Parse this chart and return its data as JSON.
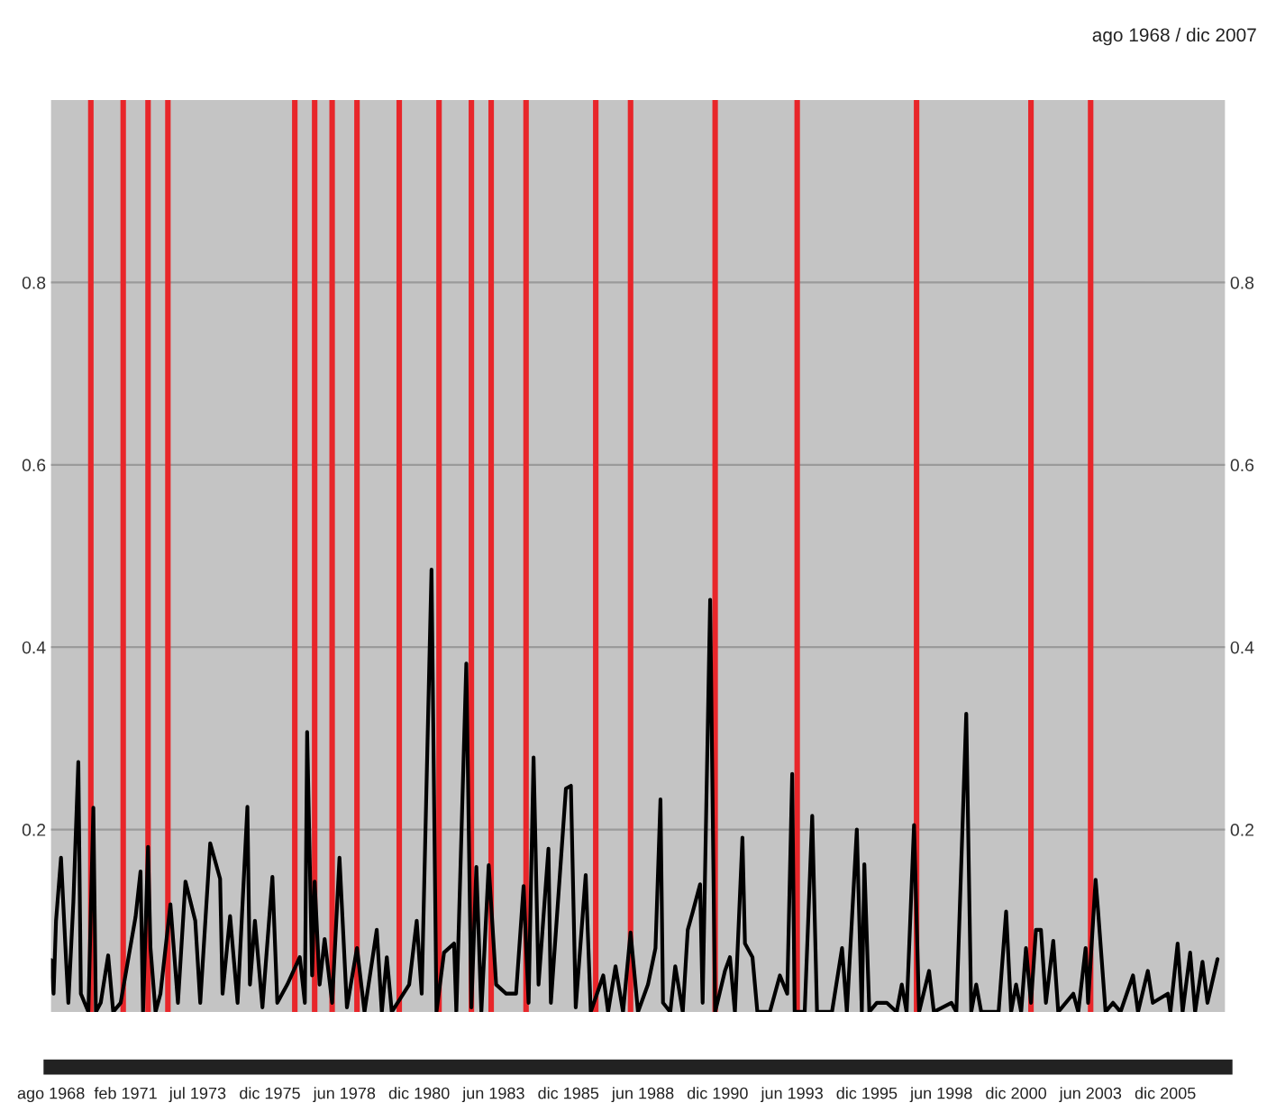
{
  "chart_data": {
    "type": "line",
    "title": "ago 1968 / dic 2007",
    "x": [
      "1968-08",
      "1968-09",
      "1968-10",
      "1968-12",
      "1969-02",
      "1969-03",
      "1969-05",
      "1969-07",
      "1969-08",
      "1969-11",
      "1970-01",
      "1970-02",
      "1970-04",
      "1970-07",
      "1970-09",
      "1970-12",
      "1971-06",
      "1971-08",
      "1971-09",
      "1971-11",
      "1971-12",
      "1972-02",
      "1972-04",
      "1972-08",
      "1972-11",
      "1973-02",
      "1973-06",
      "1973-08",
      "1973-12",
      "1974-04",
      "1974-05",
      "1974-08",
      "1974-11",
      "1975-03",
      "1975-04",
      "1975-06",
      "1975-09",
      "1976-01",
      "1976-03",
      "1976-07",
      "1976-12",
      "1977-02",
      "1977-03",
      "1977-05",
      "1977-06",
      "1977-08",
      "1977-10",
      "1978-01",
      "1978-04",
      "1978-07",
      "1978-11",
      "1979-02",
      "1979-07",
      "1979-09",
      "1979-11",
      "1980-01",
      "1980-08",
      "1980-11",
      "1981-01",
      "1981-05",
      "1981-07",
      "1981-10",
      "1982-02",
      "1982-03",
      "1982-07",
      "1982-09",
      "1982-11",
      "1983-01",
      "1983-04",
      "1983-07",
      "1983-11",
      "1984-03",
      "1984-06",
      "1984-08",
      "1984-10",
      "1984-12",
      "1985-04",
      "1985-05",
      "1985-11",
      "1986-01",
      "1986-03",
      "1986-07",
      "1986-09",
      "1987-02",
      "1987-04",
      "1987-07",
      "1987-10",
      "1988-01",
      "1988-04",
      "1988-08",
      "1988-11",
      "1989-01",
      "1989-02",
      "1989-05",
      "1989-07",
      "1989-10",
      "1989-12",
      "1990-02",
      "1990-05",
      "1990-06",
      "1990-09",
      "1990-11",
      "1991-03",
      "1991-05",
      "1991-07",
      "1991-10",
      "1991-11",
      "1992-02",
      "1992-04",
      "1992-09",
      "1993-01",
      "1993-04",
      "1993-06",
      "1993-07",
      "1993-11",
      "1994-02",
      "1994-04",
      "1994-10",
      "1995-02",
      "1995-04",
      "1995-08",
      "1995-10",
      "1995-11",
      "1996-01",
      "1996-04",
      "1996-08",
      "1996-12",
      "1997-02",
      "1997-04",
      "1997-07",
      "1997-09",
      "1998-01",
      "1998-03",
      "1998-10",
      "1998-12",
      "1999-04",
      "1999-06",
      "1999-08",
      "1999-10",
      "2000-05",
      "2000-08",
      "2000-10",
      "2000-12",
      "2001-02",
      "2001-04",
      "2001-06",
      "2001-08",
      "2001-10",
      "2001-12",
      "2002-03",
      "2002-05",
      "2002-11",
      "2003-01",
      "2003-04",
      "2003-05",
      "2003-08",
      "2003-09",
      "2003-12",
      "2004-03",
      "2004-06",
      "2004-11",
      "2005-01",
      "2005-05",
      "2005-07",
      "2006-01",
      "2006-02",
      "2006-05",
      "2006-07",
      "2006-10",
      "2006-12",
      "2007-03",
      "2007-05",
      "2007-09"
    ],
    "series": [
      {
        "color": "#000000",
        "values": [
          0.057,
          0.02,
          0.1,
          0.169,
          0.057,
          0.01,
          0.12,
          0.274,
          0.02,
          0,
          0.224,
          0,
          0.01,
          0.062,
          0,
          0.01,
          0.104,
          0.154,
          0,
          0.181,
          0.07,
          0,
          0.02,
          0.118,
          0.01,
          0.143,
          0.1,
          0.01,
          0.185,
          0.146,
          0.02,
          0.105,
          0.01,
          0.225,
          0.03,
          0.1,
          0.005,
          0.148,
          0.01,
          0.03,
          0.06,
          0.01,
          0.307,
          0.04,
          0.143,
          0.03,
          0.08,
          0.01,
          0.169,
          0.005,
          0.07,
          0,
          0.09,
          0,
          0.06,
          0,
          0.03,
          0.1,
          0.02,
          0.485,
          0,
          0.065,
          0.075,
          0,
          0.382,
          0.005,
          0.159,
          0,
          0.161,
          0.03,
          0.02,
          0.02,
          0.138,
          0.01,
          0.279,
          0.03,
          0.179,
          0.01,
          0.245,
          0.248,
          0.005,
          0.15,
          0,
          0.04,
          0,
          0.05,
          0,
          0.087,
          0,
          0.03,
          0.07,
          0.233,
          0.01,
          0,
          0.05,
          0,
          0.09,
          0.11,
          0.14,
          0.01,
          0.452,
          0,
          0.045,
          0.06,
          0,
          0.191,
          0.075,
          0.06,
          0,
          0,
          0.04,
          0.02,
          0.261,
          0,
          0,
          0.215,
          0,
          0,
          0.07,
          0,
          0.2,
          0,
          0.162,
          0,
          0.01,
          0.01,
          0,
          0.03,
          0,
          0.205,
          0,
          0.045,
          0,
          0.01,
          0,
          0.327,
          0,
          0.03,
          0,
          0,
          0.11,
          0,
          0.03,
          0,
          0.07,
          0.01,
          0.09,
          0.09,
          0.01,
          0.078,
          0,
          0.02,
          0,
          0.07,
          0.01,
          0.145,
          0.11,
          0,
          0.01,
          0,
          0.04,
          0,
          0.045,
          0.01,
          0.02,
          0,
          0.075,
          0,
          0.065,
          0,
          0.055,
          0.01,
          0.058
        ]
      }
    ],
    "ref_lines": [
      {
        "axis": "x",
        "value": "1969-12",
        "color": "#e8262a"
      },
      {
        "axis": "x",
        "value": "1971-01",
        "color": "#e8262a"
      },
      {
        "axis": "x",
        "value": "1971-11",
        "color": "#e8262a"
      },
      {
        "axis": "x",
        "value": "1972-07",
        "color": "#e8262a"
      },
      {
        "axis": "x",
        "value": "1976-10",
        "color": "#e8262a"
      },
      {
        "axis": "x",
        "value": "1977-06",
        "color": "#e8262a"
      },
      {
        "axis": "x",
        "value": "1978-01",
        "color": "#e8262a"
      },
      {
        "axis": "x",
        "value": "1978-11",
        "color": "#e8262a"
      },
      {
        "axis": "x",
        "value": "1980-04",
        "color": "#e8262a"
      },
      {
        "axis": "x",
        "value": "1981-08",
        "color": "#e8262a"
      },
      {
        "axis": "x",
        "value": "1982-09",
        "color": "#e8262a"
      },
      {
        "axis": "x",
        "value": "1983-05",
        "color": "#e8262a"
      },
      {
        "axis": "x",
        "value": "1984-07",
        "color": "#e8262a"
      },
      {
        "axis": "x",
        "value": "1986-11",
        "color": "#e8262a"
      },
      {
        "axis": "x",
        "value": "1988-01",
        "color": "#e8262a"
      },
      {
        "axis": "x",
        "value": "1990-11",
        "color": "#e8262a"
      },
      {
        "axis": "x",
        "value": "1993-08",
        "color": "#e8262a"
      },
      {
        "axis": "x",
        "value": "1997-08",
        "color": "#e8262a"
      },
      {
        "axis": "x",
        "value": "2001-06",
        "color": "#e8262a"
      },
      {
        "axis": "x",
        "value": "2003-06",
        "color": "#e8262a"
      }
    ],
    "xlim": [
      "1968-08",
      "2007-12"
    ],
    "xticks": [
      {
        "value": "1968-08",
        "label": "ago 1968"
      },
      {
        "value": "1971-02",
        "label": "feb 1971"
      },
      {
        "value": "1973-07",
        "label": "jul 1973"
      },
      {
        "value": "1975-12",
        "label": "dic 1975"
      },
      {
        "value": "1978-06",
        "label": "jun 1978"
      },
      {
        "value": "1980-12",
        "label": "dic 1980"
      },
      {
        "value": "1983-06",
        "label": "jun 1983"
      },
      {
        "value": "1985-12",
        "label": "dic 1985"
      },
      {
        "value": "1988-06",
        "label": "jun 1988"
      },
      {
        "value": "1990-12",
        "label": "dic 1990"
      },
      {
        "value": "1993-06",
        "label": "jun 1993"
      },
      {
        "value": "1995-12",
        "label": "dic 1995"
      },
      {
        "value": "1998-06",
        "label": "jun 1998"
      },
      {
        "value": "2000-12",
        "label": "dic 2000"
      },
      {
        "value": "2003-06",
        "label": "jun 2003"
      },
      {
        "value": "2005-12",
        "label": "dic 2005"
      }
    ],
    "ylim": [
      0,
      1
    ],
    "yticks": [
      0.2,
      0.4,
      0.6,
      0.8
    ],
    "y2lim": [
      0,
      1
    ],
    "y2ticks": [
      0.2,
      0.4,
      0.6,
      0.8
    ],
    "grid": "y",
    "legend": false,
    "marker": "none",
    "line_style": "solid"
  }
}
